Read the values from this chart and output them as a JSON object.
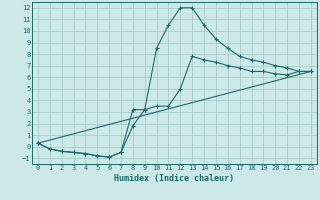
{
  "xlabel": "Humidex (Indice chaleur)",
  "background_color": "#cce8e8",
  "grid_color": "#aacccc",
  "line_color": "#1a6b6b",
  "line1_x": [
    0,
    1,
    2,
    3,
    4,
    5,
    6,
    7,
    8,
    9,
    10,
    11,
    12,
    13,
    14,
    15,
    16,
    17,
    18,
    19,
    20,
    21,
    22,
    23
  ],
  "line1_y": [
    0.3,
    -0.2,
    -0.4,
    -0.5,
    -0.6,
    -0.8,
    -0.9,
    -0.5,
    3.2,
    3.2,
    8.5,
    10.5,
    12.0,
    12.0,
    10.5,
    9.3,
    8.5,
    7.8,
    7.5,
    7.3,
    7.0,
    6.8,
    6.5,
    6.5
  ],
  "line2_x": [
    0,
    1,
    2,
    3,
    4,
    5,
    6,
    7,
    8,
    9,
    10,
    11,
    12,
    13,
    14,
    15,
    16,
    17,
    18,
    19,
    20,
    21,
    22,
    23
  ],
  "line2_y": [
    0.3,
    -0.2,
    -0.4,
    -0.5,
    -0.6,
    -0.8,
    -0.9,
    -0.5,
    1.8,
    3.2,
    3.5,
    3.5,
    5.0,
    7.8,
    7.5,
    7.3,
    7.0,
    6.8,
    6.5,
    6.5,
    6.3,
    6.2,
    6.5,
    6.5
  ],
  "line3_x": [
    0,
    23
  ],
  "line3_y": [
    0.3,
    6.5
  ],
  "xlim": [
    -0.5,
    23.5
  ],
  "ylim": [
    -1.5,
    12.5
  ],
  "yticks": [
    -1,
    0,
    1,
    2,
    3,
    4,
    5,
    6,
    7,
    8,
    9,
    10,
    11,
    12
  ],
  "xticks": [
    0,
    1,
    2,
    3,
    4,
    5,
    6,
    7,
    8,
    9,
    10,
    11,
    12,
    13,
    14,
    15,
    16,
    17,
    18,
    19,
    20,
    21,
    22,
    23
  ]
}
